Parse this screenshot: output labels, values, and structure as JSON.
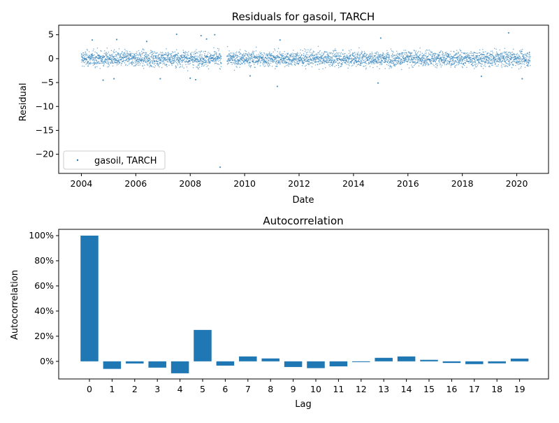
{
  "chart_data": [
    {
      "type": "scatter",
      "title": "Residuals for gasoil, TARCH",
      "xlabel": "Date",
      "ylabel": "Residual",
      "xlim": [
        "2003-03",
        "2021-03"
      ],
      "ylim": [
        -24,
        7
      ],
      "xticks": [
        "2004",
        "2006",
        "2008",
        "2010",
        "2012",
        "2014",
        "2016",
        "2018",
        "2020"
      ],
      "yticks": [
        "5",
        "0",
        "−5",
        "−10",
        "−15",
        "−20"
      ],
      "legend": {
        "label": "gasoil, TARCH",
        "position": "lower-left"
      },
      "color": "#1f77b4",
      "series": [
        {
          "name": "gasoil, TARCH",
          "description_range": {
            "start": "2004-01",
            "end": "2020-07",
            "typical_spread": [
              -3,
              3
            ]
          },
          "outliers": [
            {
              "x": "2004.4",
              "y": 3.9
            },
            {
              "x": "2005.3",
              "y": 4.0
            },
            {
              "x": "2004.8",
              "y": -4.5
            },
            {
              "x": "2005.2",
              "y": -4.2
            },
            {
              "x": "2006.4",
              "y": 3.6
            },
            {
              "x": "2006.9",
              "y": -4.2
            },
            {
              "x": "2007.5",
              "y": 5.1
            },
            {
              "x": "2008.4",
              "y": 4.8
            },
            {
              "x": "2008.6",
              "y": 4.1
            },
            {
              "x": "2008.9",
              "y": 5.0
            },
            {
              "x": "2008.0",
              "y": -4.1
            },
            {
              "x": "2008.2",
              "y": -4.4
            },
            {
              "x": "2009.1",
              "y": -22.7
            },
            {
              "x": "2010.2",
              "y": -3.6
            },
            {
              "x": "2011.2",
              "y": -5.8
            },
            {
              "x": "2011.3",
              "y": 3.9
            },
            {
              "x": "2014.9",
              "y": -5.1
            },
            {
              "x": "2015.0",
              "y": 4.3
            },
            {
              "x": "2018.7",
              "y": -3.7
            },
            {
              "x": "2019.7",
              "y": 5.4
            },
            {
              "x": "2020.2",
              "y": -4.2
            }
          ]
        }
      ]
    },
    {
      "type": "bar",
      "title": "Autocorrelation",
      "xlabel": "Lag",
      "ylabel": "Autocorrelation",
      "ylim": [
        -0.14,
        1.05
      ],
      "yticks": [
        "100%",
        "80%",
        "60%",
        "40%",
        "20%",
        "0%"
      ],
      "color": "#1f77b4",
      "categories": [
        "0",
        "1",
        "2",
        "3",
        "4",
        "5",
        "6",
        "7",
        "8",
        "9",
        "10",
        "11",
        "12",
        "13",
        "14",
        "15",
        "16",
        "17",
        "18",
        "19"
      ],
      "values": [
        1.0,
        -0.06,
        -0.017,
        -0.05,
        -0.095,
        0.25,
        -0.034,
        0.039,
        0.023,
        -0.045,
        -0.054,
        -0.04,
        -0.006,
        0.028,
        0.039,
        0.012,
        -0.013,
        -0.022,
        -0.016,
        0.022
      ]
    }
  ]
}
